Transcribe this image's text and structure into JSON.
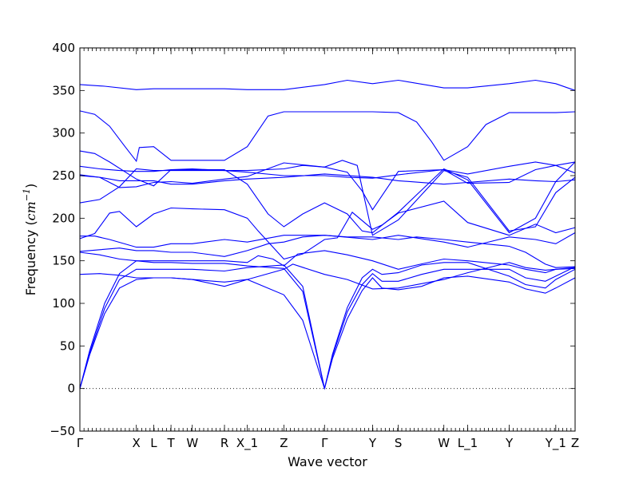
{
  "chart_data": {
    "type": "line",
    "title": "",
    "xlabel": "Wave vector",
    "ylabel": "Frequency (cm⁻¹)",
    "ylabel_parts": {
      "prefix": "Frequency (",
      "unit_base": "cm",
      "unit_exp": "−1",
      "suffix": ")"
    },
    "ylim": [
      -50,
      400
    ],
    "yticks": [
      -50,
      0,
      50,
      100,
      150,
      200,
      250,
      300,
      350,
      400
    ],
    "xlim": [
      0,
      100
    ],
    "xticks": [
      {
        "label": "Γ",
        "x": 0
      },
      {
        "label": "X",
        "x": 11.4
      },
      {
        "label": "L",
        "x": 14.9
      },
      {
        "label": "T",
        "x": 18.4
      },
      {
        "label": "W",
        "x": 22.7
      },
      {
        "label": "R",
        "x": 29.2
      },
      {
        "label": "X_1",
        "x": 33.8
      },
      {
        "label": "Z",
        "x": 41.2
      },
      {
        "label": "Γ",
        "x": 49.4
      },
      {
        "label": "Y",
        "x": 59.1
      },
      {
        "label": "S",
        "x": 64.3
      },
      {
        "label": "W",
        "x": 73.5
      },
      {
        "label": "L_1",
        "x": 78.3
      },
      {
        "label": "Y",
        "x": 86.7
      },
      {
        "label": "Y_1",
        "x": 96.1
      },
      {
        "label": "Z",
        "x": 100
      }
    ],
    "grid": false,
    "zero_line": true,
    "line_color": "#0000ff",
    "series": [
      {
        "x": [
          0,
          5,
          11.4,
          14.9,
          18.4,
          22.7,
          29.2,
          33.8,
          41.2,
          49.4,
          54,
          59.1,
          64.3,
          73.5,
          78.3,
          86.7,
          92,
          96.1,
          100
        ],
        "y": [
          357,
          355,
          351,
          352,
          352,
          352,
          352,
          351,
          351,
          357,
          362,
          358,
          362,
          353,
          353,
          358,
          362,
          358,
          350
        ]
      },
      {
        "x": [
          0,
          3,
          6,
          9,
          11.4,
          12,
          14.9,
          18.4,
          22.7,
          29.2,
          33.8,
          38,
          41.2,
          49.4,
          54,
          59.1,
          64.3,
          68,
          71,
          73.5,
          78.3,
          82,
          86.7,
          92,
          96.1,
          100
        ],
        "y": [
          326,
          322,
          308,
          285,
          267,
          283,
          284,
          268,
          268,
          268,
          284,
          320,
          325,
          325,
          325,
          325,
          324,
          313,
          290,
          268,
          284,
          310,
          324,
          324,
          324,
          325
        ]
      },
      {
        "x": [
          0,
          3,
          6,
          11.4,
          14.9,
          18.4,
          22.7,
          29.2,
          33.8,
          38,
          41.2,
          45,
          49.4,
          54,
          57,
          59.1,
          64.3,
          73.5,
          78.3,
          86.7,
          92,
          96.1,
          100
        ],
        "y": [
          279,
          276,
          266,
          246,
          238,
          257,
          257,
          257,
          240,
          205,
          190,
          205,
          218,
          205,
          185,
          183,
          207,
          258,
          245,
          183,
          200,
          243,
          266
        ]
      },
      {
        "x": [
          0,
          4,
          8,
          11.4,
          14.9,
          18.4,
          22.7,
          29.2,
          33.8,
          41.2,
          45,
          49.4,
          54,
          57,
          59.1,
          64.3,
          73.5,
          78.3,
          86.7,
          92,
          96.1,
          100
        ],
        "y": [
          218,
          222,
          237,
          258,
          256,
          256,
          256,
          256,
          256,
          258,
          262,
          260,
          254,
          232,
          210,
          255,
          257,
          241,
          242,
          257,
          262,
          266
        ]
      },
      {
        "x": [
          0,
          4,
          8,
          11.4,
          14.9,
          18.4,
          22.7,
          29.2,
          33.8,
          41.2,
          49.4,
          54,
          59.1,
          64.3,
          73.5,
          78.3,
          86.7,
          92,
          96.1,
          100
        ],
        "y": [
          261,
          258,
          256,
          255,
          255,
          257,
          258,
          256,
          254,
          250,
          250,
          248,
          247,
          251,
          257,
          252,
          261,
          266,
          262,
          253
        ]
      },
      {
        "x": [
          0,
          4,
          8,
          11.4,
          14.9,
          18.4,
          22.7,
          29.2,
          33.8,
          37,
          41.2,
          49.4,
          53,
          56,
          59.1,
          64.3,
          73.5,
          78.3,
          86.7,
          92,
          96.1,
          100
        ],
        "y": [
          251,
          248,
          236,
          237,
          242,
          243,
          241,
          246,
          249,
          256,
          265,
          260,
          268,
          262,
          180,
          198,
          256,
          248,
          185,
          190,
          230,
          248
        ]
      },
      {
        "x": [
          0,
          3,
          6,
          8,
          11.4,
          14.9,
          18.4,
          22.7,
          29.2,
          33.8,
          36,
          41.2,
          45,
          49.4,
          52,
          55,
          59.1,
          61,
          64.3,
          73.5,
          78.3,
          86.7,
          92,
          96.1,
          100
        ],
        "y": [
          176,
          182,
          206,
          208,
          190,
          205,
          212,
          211,
          210,
          200,
          185,
          152,
          158,
          175,
          177,
          207,
          187,
          192,
          206,
          220,
          195,
          180,
          193,
          183,
          189
        ]
      },
      {
        "x": [
          0,
          3,
          6,
          11.4,
          14.9,
          18.4,
          22.7,
          29.2,
          33.8,
          41.2,
          49.4,
          59.1,
          64.3,
          73.5,
          78.3,
          86.7,
          92,
          96.1,
          100
        ],
        "y": [
          179,
          179,
          175,
          166,
          166,
          170,
          170,
          175,
          172,
          180,
          180,
          175,
          180,
          172,
          166,
          178,
          175,
          170,
          183
        ]
      },
      {
        "x": [
          0,
          4,
          8,
          11.4,
          14.9,
          18.4,
          22.7,
          29.2,
          33.8,
          38,
          41.2,
          45,
          49.4,
          54,
          59.1,
          64.3,
          68,
          73.5,
          78.3,
          86.7,
          90,
          94,
          96.1,
          100
        ],
        "y": [
          161,
          163,
          165,
          162,
          162,
          160,
          160,
          155,
          162,
          170,
          172,
          178,
          180,
          178,
          178,
          175,
          178,
          175,
          172,
          167,
          160,
          146,
          142,
          143
        ]
      },
      {
        "x": [
          0,
          4,
          8,
          11.4,
          14.9,
          18.4,
          22.7,
          29.2,
          33.8,
          36,
          39,
          41.2,
          44,
          49.4,
          54,
          59.1,
          64.3,
          68,
          73.5,
          78.3,
          86.7,
          90,
          94,
          96.1,
          100
        ],
        "y": [
          160,
          157,
          152,
          150,
          150,
          150,
          150,
          150,
          148,
          156,
          152,
          144,
          158,
          162,
          157,
          150,
          140,
          145,
          152,
          150,
          145,
          140,
          136,
          140,
          141
        ]
      },
      {
        "x": [
          0,
          4,
          8,
          11.4,
          14.9,
          18.4,
          22.7,
          29.2,
          33.8,
          41.2,
          43,
          49.4,
          54,
          59.1,
          64.3,
          73.5,
          78.3,
          86.7,
          90,
          94,
          96.1,
          100
        ],
        "y": [
          134,
          135,
          133,
          130,
          130,
          130,
          128,
          125,
          128,
          140,
          146,
          134,
          128,
          117,
          118,
          128,
          136,
          148,
          142,
          139,
          140,
          142
        ]
      },
      {
        "x": [
          0,
          2,
          5,
          8,
          11.4,
          14.9,
          18.4,
          22.7,
          29.2,
          33.8,
          41.2,
          45,
          49.4,
          51,
          54,
          57,
          59.1,
          61,
          64.3,
          69,
          73.5,
          78.3,
          86.7,
          90,
          94,
          96.1,
          100
        ],
        "y": [
          0,
          45,
          100,
          135,
          150,
          148,
          148,
          147,
          147,
          144,
          141,
          114,
          0,
          40,
          95,
          130,
          140,
          134,
          136,
          145,
          148,
          148,
          132,
          122,
          118,
          128,
          140
        ]
      },
      {
        "x": [
          0,
          2,
          5,
          8,
          11.4,
          14.9,
          18.4,
          22.7,
          29.2,
          33.8,
          41.2,
          45,
          49.4,
          51,
          54,
          57,
          59.1,
          61,
          64.3,
          69,
          73.5,
          78.3,
          86.7,
          90,
          94,
          96.1,
          100
        ],
        "y": [
          0,
          40,
          88,
          118,
          128,
          130,
          130,
          128,
          120,
          128,
          110,
          80,
          0,
          35,
          82,
          115,
          130,
          118,
          116,
          120,
          130,
          132,
          125,
          117,
          112,
          118,
          130
        ]
      },
      {
        "x": [
          0,
          2,
          5,
          8,
          11.4,
          14.9,
          18.4,
          22.7,
          29.2,
          33.8,
          41.2,
          45,
          49.4,
          51,
          54,
          57,
          59.1,
          61,
          64.3,
          69,
          73.5,
          78.3,
          86.7,
          90,
          94,
          96.1,
          100
        ],
        "y": [
          0,
          42,
          94,
          128,
          140,
          140,
          140,
          140,
          138,
          142,
          145,
          120,
          0,
          38,
          90,
          122,
          135,
          126,
          126,
          134,
          140,
          140,
          140,
          130,
          126,
          132,
          143
        ]
      },
      {
        "x": [
          0,
          4,
          8,
          11.4,
          14.9,
          18.4,
          22.7,
          29.2,
          33.8,
          41.2,
          49.4,
          59.1,
          64.3,
          73.5,
          78.3,
          86.7,
          92,
          96.1,
          100
        ],
        "y": [
          250,
          248,
          244,
          244,
          244,
          240,
          240,
          244,
          246,
          248,
          252,
          248,
          244,
          240,
          242,
          246,
          244,
          243,
          245
        ]
      }
    ]
  }
}
